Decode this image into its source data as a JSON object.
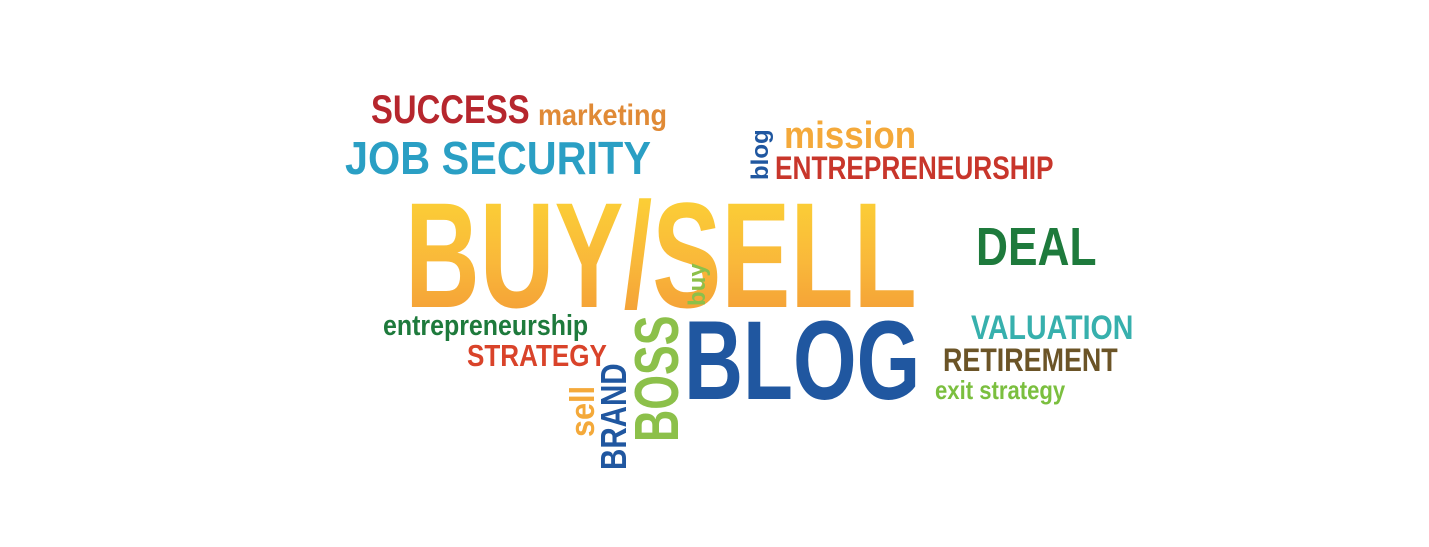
{
  "words": {
    "success": {
      "text": "SUCCESS",
      "color": "#b6262d"
    },
    "marketing": {
      "text": "marketing",
      "color": "#e08a36"
    },
    "job_security": {
      "text": "JOB SECURITY",
      "color": "#2a9fc4"
    },
    "blog_small": {
      "text": "blog",
      "color": "#2057a0"
    },
    "mission": {
      "text": "mission",
      "color": "#f4a93a"
    },
    "entrepreneurship_caps": {
      "text": "ENTREPRENEURSHIP",
      "color": "#c8362b"
    },
    "buy_sell": {
      "text": "BUY/SELL",
      "colors": [
        "#fcd535",
        "#f39a36"
      ]
    },
    "deal": {
      "text": "DEAL",
      "color": "#1e7a3c"
    },
    "entrepreneurship_lower": {
      "text": "entrepreneurship",
      "color": "#1e7a3c"
    },
    "strategy": {
      "text": "STRATEGY",
      "color": "#d9432a"
    },
    "buy_small": {
      "text": "buy",
      "color": "#8cc04a"
    },
    "boss": {
      "text": "BOSS",
      "color": "#8cc04a"
    },
    "blog_big": {
      "text": "BLOG",
      "color": "#2057a0"
    },
    "valuation": {
      "text": "VALUATION",
      "color": "#37b0ad"
    },
    "retirement": {
      "text": "RETIREMENT",
      "color": "#6b5427"
    },
    "exit_strategy": {
      "text": "exit strategy",
      "color": "#7bbf3f"
    },
    "sell_small": {
      "text": "sell",
      "color": "#f4a93a"
    },
    "brand": {
      "text": "BRAND",
      "color": "#2057a0"
    }
  }
}
